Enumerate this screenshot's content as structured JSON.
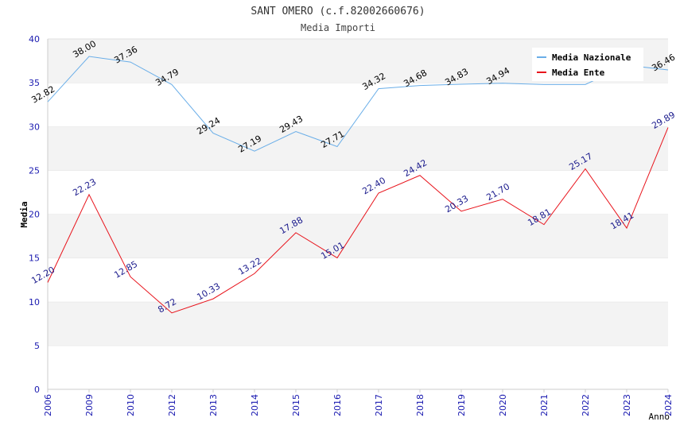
{
  "chart_data": {
    "type": "line",
    "title": "SANT OMERO (c.f.82002660676)",
    "subtitle": "Media Importi",
    "xlabel": "Anno",
    "ylabel": "Media",
    "categories": [
      "2006",
      "2009",
      "2010",
      "2012",
      "2013",
      "2014",
      "2015",
      "2016",
      "2017",
      "2018",
      "2019",
      "2020",
      "2021",
      "2022",
      "2023",
      "2024"
    ],
    "ylim": [
      0,
      40
    ],
    "yticks": [
      "0",
      "5",
      "10",
      "15",
      "20",
      "25",
      "30",
      "35",
      "40"
    ],
    "grid": "horizontal bands",
    "legend_position": "top-right",
    "series": [
      {
        "name": "Media Nazionale",
        "color": "#6aaee8",
        "label_color": "#000000",
        "values": [
          32.82,
          38.0,
          37.36,
          34.79,
          29.24,
          27.19,
          29.43,
          27.71,
          34.32,
          34.68,
          34.83,
          34.94,
          34.8,
          34.8,
          37.0,
          36.46
        ],
        "labels": [
          "32.82",
          "38.00",
          "37.36",
          "34.79",
          "29.24",
          "27.19",
          "29.43",
          "27.71",
          "34.32",
          "34.68",
          "34.83",
          "34.94",
          "",
          "",
          "",
          "36.46"
        ]
      },
      {
        "name": "Media Ente",
        "color": "#e8141c",
        "label_color": "#1a1a8c",
        "values": [
          12.2,
          22.23,
          12.85,
          8.72,
          10.33,
          13.22,
          17.88,
          15.01,
          22.4,
          24.42,
          20.33,
          21.7,
          18.81,
          25.17,
          18.41,
          29.89
        ],
        "labels": [
          "12.20",
          "22.23",
          "12.85",
          "8.72",
          "10.33",
          "13.22",
          "17.88",
          "15.01",
          "22.40",
          "24.42",
          "20.33",
          "21.70",
          "18.81",
          "25.17",
          "18.41",
          "29.89"
        ]
      }
    ]
  }
}
